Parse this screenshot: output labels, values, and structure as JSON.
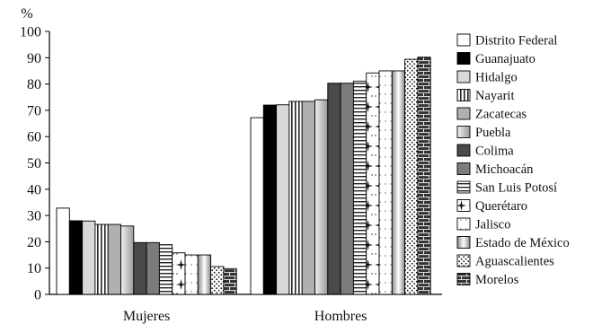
{
  "chart_data": {
    "type": "bar",
    "title": "",
    "ylabel": "%",
    "xlabel": "",
    "ylim": [
      0,
      100
    ],
    "yticks": [
      0,
      10,
      20,
      30,
      40,
      50,
      60,
      70,
      80,
      90,
      100
    ],
    "categories": [
      "Mujeres",
      "Hombres"
    ],
    "legend_position": "right",
    "grid": false,
    "series": [
      {
        "name": "Distrito Federal",
        "pattern": "white",
        "values": [
          32.8,
          67.2
        ]
      },
      {
        "name": "Guanajuato",
        "pattern": "black",
        "values": [
          28.0,
          72.0
        ]
      },
      {
        "name": "Hidalgo",
        "pattern": "lightgray",
        "values": [
          27.9,
          72.1
        ]
      },
      {
        "name": "Nayarit",
        "pattern": "vertical-lines",
        "values": [
          26.6,
          73.4
        ]
      },
      {
        "name": "Zacatecas",
        "pattern": "gray",
        "values": [
          26.6,
          73.4
        ]
      },
      {
        "name": "Puebla",
        "pattern": "gradient-light",
        "values": [
          26.0,
          74.0
        ]
      },
      {
        "name": "Colima",
        "pattern": "darkgray",
        "values": [
          19.7,
          80.3
        ]
      },
      {
        "name": "Michoacán",
        "pattern": "midgray",
        "values": [
          19.7,
          80.3
        ]
      },
      {
        "name": "San Luis Potosí",
        "pattern": "horizontal-lines",
        "values": [
          18.9,
          81.1
        ]
      },
      {
        "name": "Querétaro",
        "pattern": "stars",
        "values": [
          15.8,
          84.2
        ]
      },
      {
        "name": "Jalisco",
        "pattern": "dots-light",
        "values": [
          15.0,
          85.0
        ]
      },
      {
        "name": "Estado de México",
        "pattern": "radial",
        "values": [
          15.0,
          85.0
        ]
      },
      {
        "name": "Aguascalientes",
        "pattern": "dots",
        "values": [
          10.6,
          89.4
        ]
      },
      {
        "name": "Morelos",
        "pattern": "bricks",
        "values": [
          9.8,
          90.2
        ]
      }
    ]
  }
}
